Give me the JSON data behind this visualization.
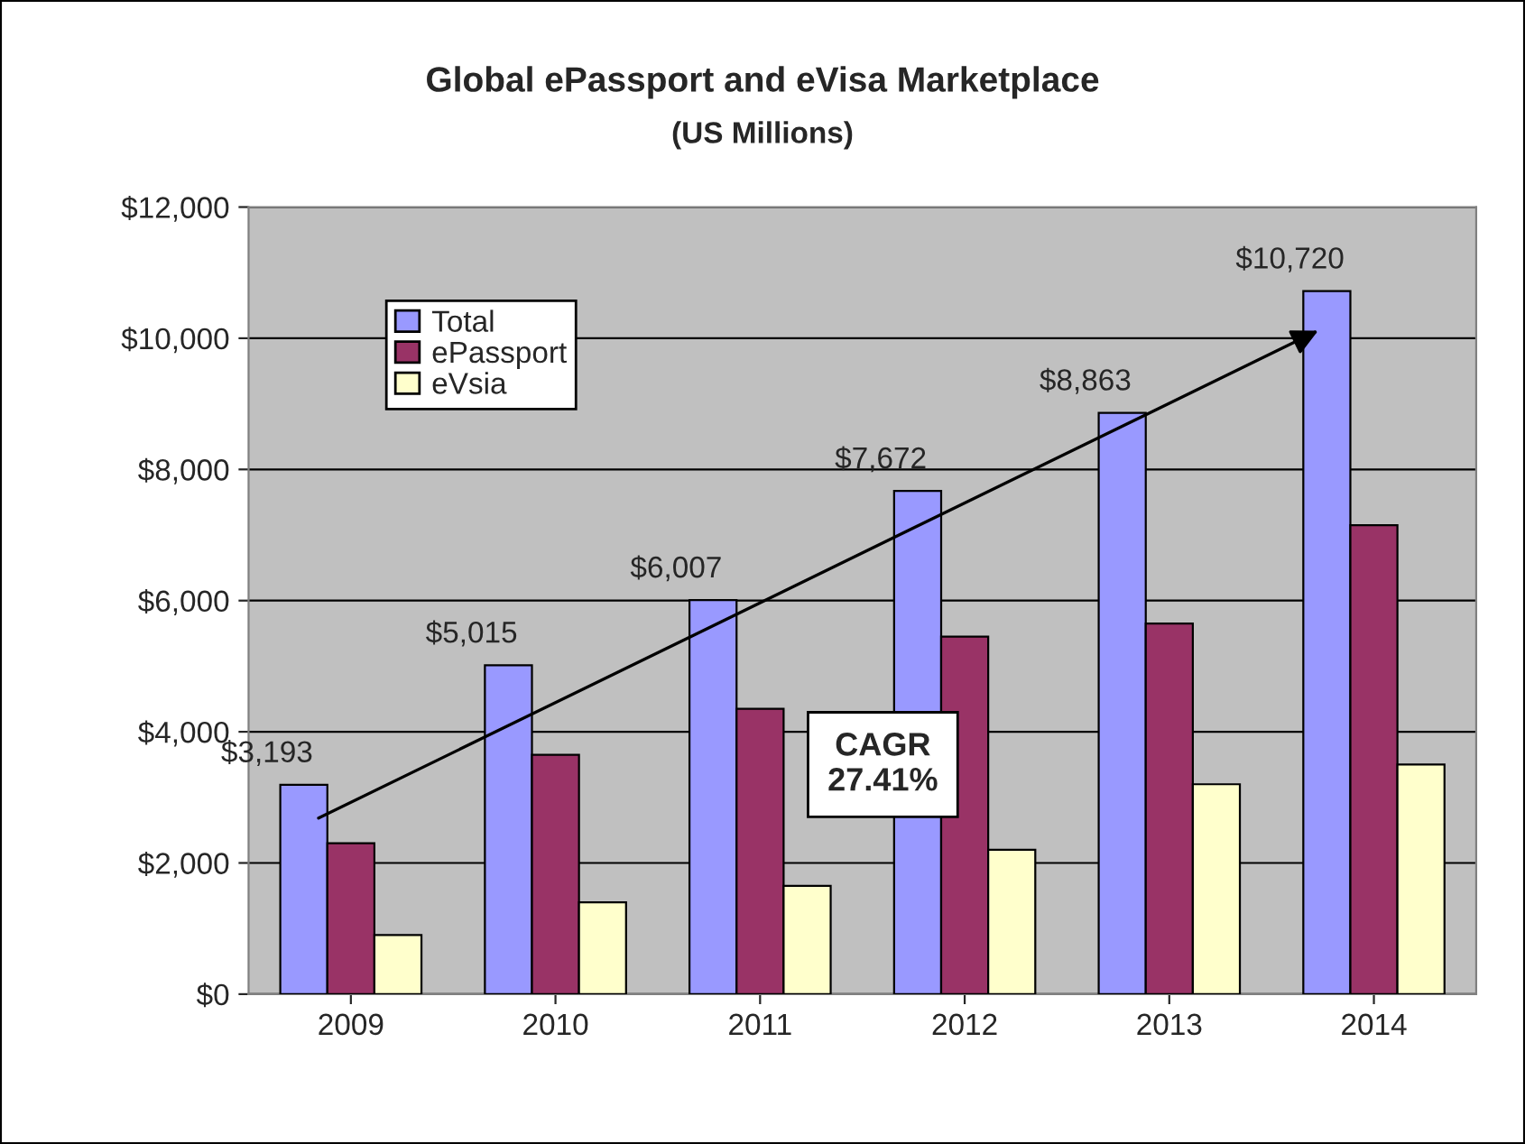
{
  "chart_data": {
    "type": "bar",
    "title": "Global ePassport and eVisa Marketplace",
    "subtitle": "(US Millions)",
    "categories": [
      "2009",
      "2010",
      "2011",
      "2012",
      "2013",
      "2014"
    ],
    "series": [
      {
        "name": "Total",
        "color": "#9999ff",
        "values": [
          3193,
          5015,
          6007,
          7672,
          8863,
          10720
        ],
        "value_labels": [
          "$3,193",
          "$5,015",
          "$6,007",
          "$7,672",
          "$8,863",
          "$10,720"
        ]
      },
      {
        "name": "ePassport",
        "color": "#993366",
        "values": [
          2300,
          3650,
          4350,
          5450,
          5650,
          7150
        ]
      },
      {
        "name": "eVsia",
        "color": "#ffffcc",
        "values": [
          900,
          1400,
          1650,
          2200,
          3200,
          3500
        ]
      }
    ],
    "ylim": [
      0,
      12000
    ],
    "yticks": [
      {
        "value": 0,
        "label": "$0"
      },
      {
        "value": 2000,
        "label": "$2,000"
      },
      {
        "value": 4000,
        "label": "$4,000"
      },
      {
        "value": 6000,
        "label": "$6,000"
      },
      {
        "value": 8000,
        "label": "$8,000"
      },
      {
        "value": 10000,
        "label": "$10,000"
      },
      {
        "value": 12000,
        "label": "$12,000"
      }
    ],
    "grid": "y",
    "legend": "top left",
    "annotations": [
      "CAGR\n27.41%"
    ]
  }
}
